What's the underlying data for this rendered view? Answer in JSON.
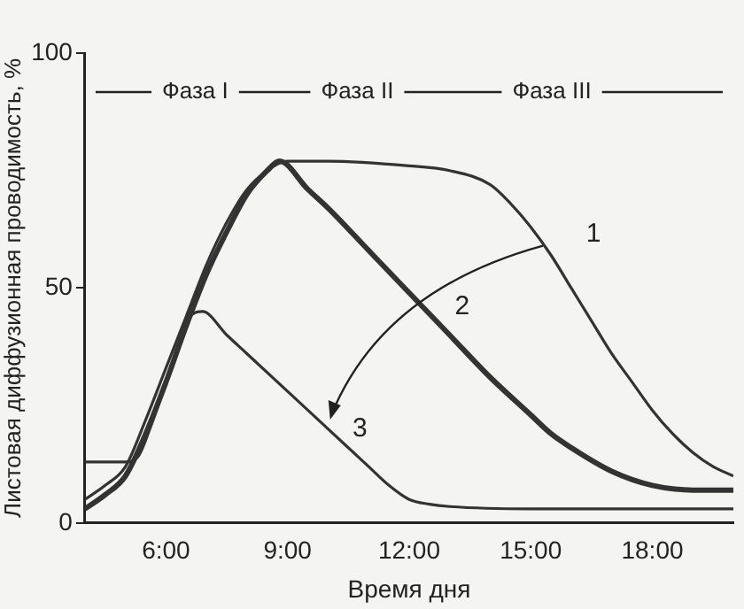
{
  "chart_data": {
    "type": "line",
    "xlabel": "Время дня",
    "ylabel": "Листовая диффузионная проводимость, %",
    "xlim": [
      4,
      20
    ],
    "ylim": [
      0,
      100
    ],
    "xticks": [
      {
        "value": 6,
        "label": "6:00"
      },
      {
        "value": 9,
        "label": "9:00"
      },
      {
        "value": 12,
        "label": "12:00"
      },
      {
        "value": 15,
        "label": "15:00"
      },
      {
        "value": 18,
        "label": "18:00"
      }
    ],
    "yticks": [
      0,
      50,
      100
    ],
    "grid": false,
    "legend": false,
    "marker": "none",
    "line_style": "solid",
    "series": [
      {
        "name": "1",
        "color": "#333333",
        "x": [
          4,
          4.5,
          5,
          5.5,
          6,
          6.5,
          7,
          7.5,
          8,
          8.5,
          9,
          10,
          12,
          13,
          14,
          14.5,
          15,
          15.5,
          16,
          16.5,
          17,
          17.5,
          18,
          18.5,
          19,
          19.5,
          20
        ],
        "values": [
          5,
          8,
          12,
          22,
          33,
          44,
          55,
          64,
          71,
          75,
          77,
          77,
          76,
          75,
          72,
          68,
          63,
          57,
          50,
          43,
          36,
          30,
          24,
          19,
          15,
          12,
          10
        ]
      },
      {
        "name": "2",
        "color": "#333333",
        "x": [
          4,
          4.5,
          5,
          5.5,
          6,
          6.5,
          7,
          7.5,
          8,
          8.5,
          8.8,
          9.5,
          10,
          11,
          12,
          13,
          14,
          15,
          15.5,
          16,
          17,
          18,
          19,
          20
        ],
        "values": [
          3,
          6,
          10,
          19,
          30,
          42,
          53,
          62,
          70,
          75,
          77,
          71,
          67,
          58,
          49,
          40,
          31,
          23,
          19,
          16,
          11,
          8,
          7,
          7
        ]
      },
      {
        "name": "3",
        "color": "#333333",
        "x": [
          4,
          5,
          5.3,
          5.6,
          6,
          6.3,
          6.6,
          6.9,
          7.5,
          8,
          9,
          10,
          11,
          11.5,
          12,
          12.5,
          13,
          15,
          18,
          20
        ],
        "values": [
          13,
          13,
          14,
          20,
          30,
          38,
          44,
          45,
          40,
          36,
          28,
          20,
          12,
          8,
          5,
          4,
          3.5,
          3,
          3,
          3
        ]
      }
    ],
    "annotations": [
      "Фаза I",
      "Фаза II",
      "Фаза III"
    ]
  }
}
